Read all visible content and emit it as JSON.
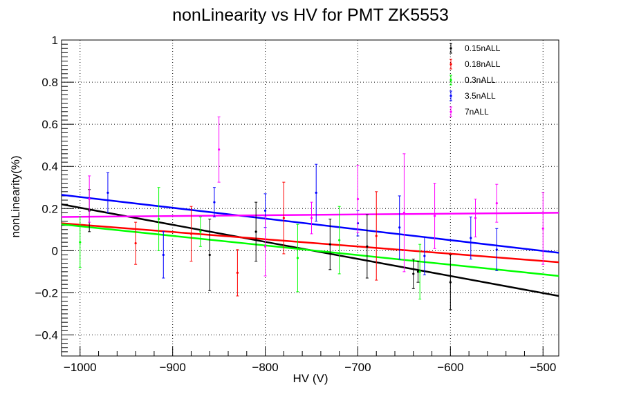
{
  "chart_data": {
    "type": "scatter",
    "title": "nonLinearity vs HV for PMT ZK5553",
    "xlabel": "HV (V)",
    "ylabel": "nonLinearity(%)",
    "xlim": [
      -1020,
      -483
    ],
    "ylim": [
      -0.5,
      1.0
    ],
    "x_ticks": [
      -1000,
      -900,
      -800,
      -700,
      -600,
      -500
    ],
    "x_tick_labels": [
      "−1000",
      "−900",
      "−800",
      "−700",
      "−600",
      "−500"
    ],
    "y_ticks": [
      -0.4,
      -0.2,
      0,
      0.2,
      0.4,
      0.6,
      0.8,
      1
    ],
    "y_tick_labels": [
      "−0.4",
      "−0.2",
      "0",
      "0.2",
      "0.4",
      "0.6",
      "0.8",
      "1"
    ],
    "grid": true,
    "legend_position": "top-right",
    "series": [
      {
        "name": "0.15nALL",
        "color": "#000000",
        "points": [
          {
            "x": -990,
            "y": 0.19,
            "err": 0.1
          },
          {
            "x": -860,
            "y": -0.02,
            "err": 0.17
          },
          {
            "x": -810,
            "y": 0.09,
            "err": 0.14
          },
          {
            "x": -730,
            "y": 0.03,
            "err": 0.12
          },
          {
            "x": -690,
            "y": 0.02,
            "err": 0.15
          },
          {
            "x": -640,
            "y": -0.11,
            "err": 0.07
          },
          {
            "x": -635,
            "y": -0.1,
            "err": 0.05
          },
          {
            "x": -600,
            "y": -0.15,
            "err": 0.13
          }
        ],
        "fit": {
          "x": [
            -1020,
            -483
          ],
          "y": [
            0.22,
            -0.215
          ]
        }
      },
      {
        "name": "0.18nALL",
        "color": "#ff0000",
        "points": [
          {
            "x": -940,
            "y": 0.035,
            "err": 0.1
          },
          {
            "x": -880,
            "y": 0.08,
            "err": 0.13
          },
          {
            "x": -830,
            "y": -0.105,
            "err": 0.11
          },
          {
            "x": -780,
            "y": 0.155,
            "err": 0.17
          },
          {
            "x": -680,
            "y": 0.07,
            "err": 0.21
          }
        ],
        "fit": {
          "x": [
            -1020,
            -483
          ],
          "y": [
            0.13,
            -0.055
          ]
        }
      },
      {
        "name": "0.3nALL",
        "color": "#00ff00",
        "points": [
          {
            "x": -1000,
            "y": 0.04,
            "err": 0.12
          },
          {
            "x": -915,
            "y": 0.15,
            "err": 0.15
          },
          {
            "x": -870,
            "y": 0.09,
            "err": 0.07
          },
          {
            "x": -765,
            "y": -0.035,
            "err": 0.16
          },
          {
            "x": -720,
            "y": 0.05,
            "err": 0.16
          },
          {
            "x": -633,
            "y": -0.1,
            "err": 0.13
          }
        ],
        "fit": {
          "x": [
            -1020,
            -483
          ],
          "y": [
            0.125,
            -0.12
          ]
        }
      },
      {
        "name": "3.5nALL",
        "color": "#0000ff",
        "points": [
          {
            "x": -970,
            "y": 0.275,
            "err": 0.095
          },
          {
            "x": -910,
            "y": -0.02,
            "err": 0.11
          },
          {
            "x": -855,
            "y": 0.23,
            "err": 0.07
          },
          {
            "x": -800,
            "y": 0.19,
            "err": 0.08
          },
          {
            "x": -745,
            "y": 0.275,
            "err": 0.135
          },
          {
            "x": -700,
            "y": 0.13,
            "err": 0.06
          },
          {
            "x": -655,
            "y": 0.11,
            "err": 0.15
          },
          {
            "x": -628,
            "y": -0.025,
            "err": 0.09
          },
          {
            "x": -578,
            "y": 0.06,
            "err": 0.1
          },
          {
            "x": -550,
            "y": 0.005,
            "err": 0.1
          }
        ],
        "fit": {
          "x": [
            -1020,
            -483
          ],
          "y": [
            0.265,
            -0.01
          ]
        }
      },
      {
        "name": "7nALL",
        "color": "#ff00ff",
        "points": [
          {
            "x": -990,
            "y": 0.245,
            "err": 0.11
          },
          {
            "x": -850,
            "y": 0.48,
            "err": 0.155
          },
          {
            "x": -800,
            "y": 0.02,
            "err": 0.14
          },
          {
            "x": -750,
            "y": 0.155,
            "err": 0.075
          },
          {
            "x": -700,
            "y": 0.245,
            "err": 0.16
          },
          {
            "x": -650,
            "y": 0.18,
            "err": 0.28
          },
          {
            "x": -617,
            "y": 0.165,
            "err": 0.155
          },
          {
            "x": -573,
            "y": 0.155,
            "err": 0.09
          },
          {
            "x": -550,
            "y": 0.225,
            "err": 0.09
          },
          {
            "x": -500,
            "y": 0.105,
            "err": 0.17
          }
        ],
        "fit": {
          "x": [
            -1020,
            -483
          ],
          "y": [
            0.16,
            0.18
          ]
        }
      }
    ]
  }
}
